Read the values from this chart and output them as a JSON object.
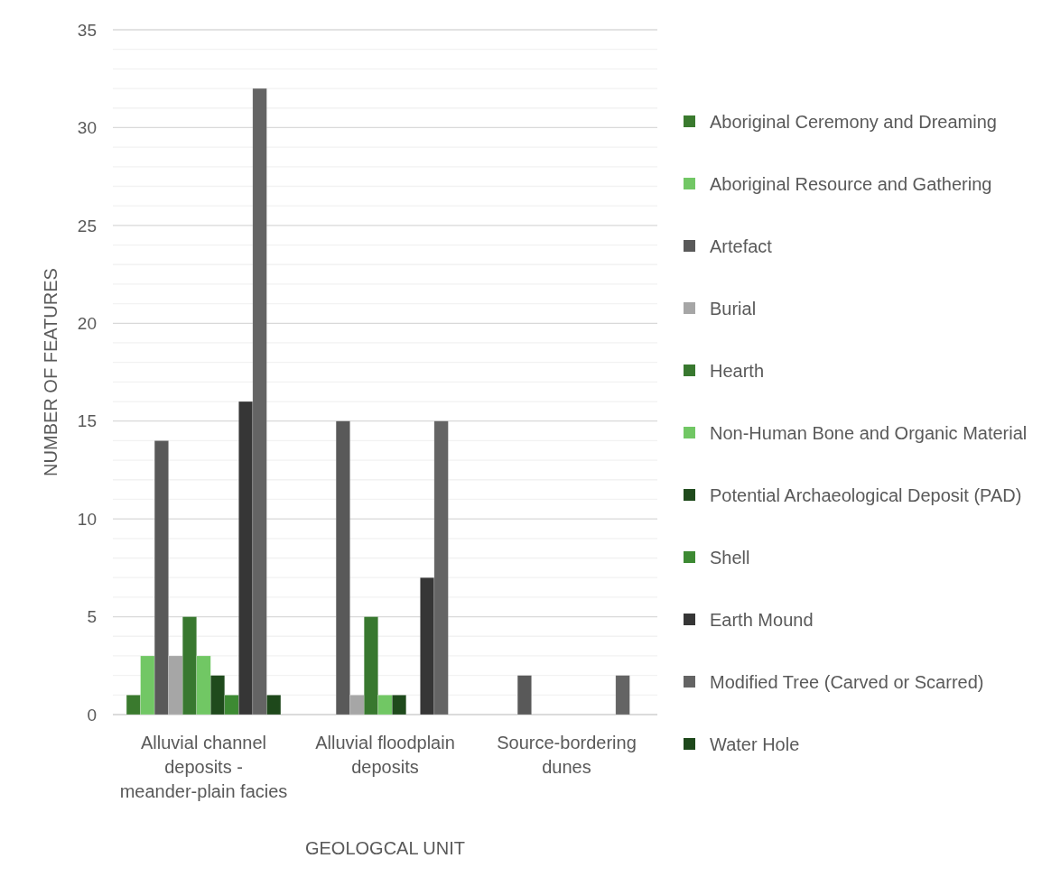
{
  "chart_data": {
    "type": "bar",
    "xlabel": "GEOLOGCAL UNIT",
    "ylabel": "NUMBER OF FEATURES",
    "categories": [
      "Alluvial channel deposits - meander-plain facies",
      "Alluvial floodplain deposits",
      "Source-bordering dunes"
    ],
    "series": [
      {
        "name": "Aboriginal Ceremony and Dreaming",
        "color": "#3a7a2e",
        "values": [
          1,
          null,
          null
        ]
      },
      {
        "name": "Aboriginal Resource and Gathering",
        "color": "#72c765",
        "values": [
          3,
          null,
          null
        ]
      },
      {
        "name": "Artefact",
        "color": "#595959",
        "values": [
          14,
          15,
          2
        ]
      },
      {
        "name": "Burial",
        "color": "#a6a6a6",
        "values": [
          3,
          1,
          null
        ]
      },
      {
        "name": "Hearth",
        "color": "#38782f",
        "values": [
          5,
          5,
          null
        ]
      },
      {
        "name": "Non-Human Bone and Organic Material",
        "color": "#71c764",
        "values": [
          3,
          1,
          null
        ]
      },
      {
        "name": "Potential Archaeological Deposit (PAD)",
        "color": "#1f4a1c",
        "values": [
          2,
          1,
          null
        ]
      },
      {
        "name": "Shell",
        "color": "#3d8a33",
        "values": [
          1,
          null,
          null
        ]
      },
      {
        "name": "Earth Mound",
        "color": "#363636",
        "values": [
          16,
          7,
          null
        ]
      },
      {
        "name": "Modified Tree (Carved or Scarred)",
        "color": "#646464",
        "values": [
          32,
          15,
          2
        ]
      },
      {
        "name": "Water Hole",
        "color": "#1e481b",
        "values": [
          1,
          null,
          null
        ]
      }
    ],
    "ylim": [
      0,
      35
    ],
    "yticks": [
      0,
      {
        "value": 1,
        "label": null
      },
      {
        "value": 2,
        "label": null
      },
      {
        "value": 3,
        "label": null
      },
      {
        "value": 4,
        "label": null
      },
      5,
      {
        "value": 6,
        "label": null
      },
      {
        "value": 7,
        "label": null
      },
      {
        "value": 8,
        "label": null
      },
      {
        "value": 9,
        "label": null
      },
      10,
      {
        "value": 11,
        "label": null
      },
      {
        "value": 12,
        "label": null
      },
      {
        "value": 13,
        "label": null
      },
      {
        "value": 14,
        "label": null
      },
      15,
      {
        "value": 16,
        "label": null
      },
      {
        "value": 17,
        "label": null
      },
      {
        "value": 18,
        "label": null
      },
      {
        "value": 19,
        "label": null
      },
      20,
      {
        "value": 21,
        "label": null
      },
      {
        "value": 22,
        "label": null
      },
      {
        "value": 23,
        "label": null
      },
      {
        "value": 24,
        "label": null
      },
      25,
      {
        "value": 26,
        "label": null
      },
      {
        "value": 27,
        "label": null
      },
      {
        "value": 28,
        "label": null
      },
      {
        "value": 29,
        "label": null
      },
      30,
      {
        "value": 31,
        "label": null
      },
      {
        "value": 32,
        "label": null
      },
      {
        "value": 33,
        "label": null
      },
      {
        "value": 34,
        "label": null
      },
      35
    ],
    "grid": true,
    "legend": "right"
  }
}
